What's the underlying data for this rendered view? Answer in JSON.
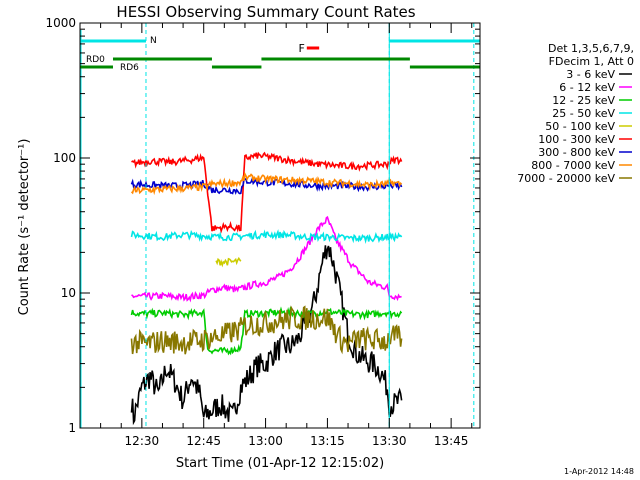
{
  "chart_data": {
    "type": "line",
    "title": "HESSI Observing Summary Count Rates",
    "xlabel": "Start Time (01-Apr-12 12:15:02)",
    "ylabel": "Count Rate (s⁻¹ detector⁻¹)",
    "yscale": "log",
    "ylim": [
      1,
      1000
    ],
    "xlim_minutes": [
      0,
      97
    ],
    "x_ticks": [
      {
        "label": "12:30",
        "minute": 15
      },
      {
        "label": "12:45",
        "minute": 30
      },
      {
        "label": "13:00",
        "minute": 45
      },
      {
        "label": "13:15",
        "minute": 60
      },
      {
        "label": "13:30",
        "minute": 75
      },
      {
        "label": "13:45",
        "minute": 90
      }
    ],
    "y_ticks": [
      {
        "label": "1",
        "value": 1
      },
      {
        "label": "10",
        "value": 10
      },
      {
        "label": "100",
        "value": 100
      },
      {
        "label": "1000",
        "value": 1000
      }
    ],
    "legend": {
      "position": "right",
      "header": [
        "Det 1,3,5,6,7,9,",
        "FDecim 1, Att 0"
      ]
    },
    "series": [
      {
        "name": "3 - 6 keV",
        "color": "#000000",
        "points": [
          [
            12.5,
            1.6
          ],
          [
            13,
            1.2
          ],
          [
            15,
            2.0
          ],
          [
            17,
            2.4
          ],
          [
            19,
            1.8
          ],
          [
            21,
            2.8
          ],
          [
            23,
            2.2
          ],
          [
            25,
            1.6
          ],
          [
            27,
            2.4
          ],
          [
            29,
            1.8
          ],
          [
            30,
            1.2
          ],
          [
            34,
            1.5
          ],
          [
            37,
            1.2
          ],
          [
            39,
            2.0
          ],
          [
            41,
            2.4
          ],
          [
            43,
            2.9
          ],
          [
            45,
            3.0
          ],
          [
            47,
            3.6
          ],
          [
            49,
            4.0
          ],
          [
            51,
            4.0
          ],
          [
            53,
            4.6
          ],
          [
            55,
            6.0
          ],
          [
            57,
            9.0
          ],
          [
            58,
            13
          ],
          [
            59,
            18
          ],
          [
            60,
            23
          ],
          [
            61,
            19
          ],
          [
            62,
            14
          ],
          [
            63,
            10
          ],
          [
            64,
            7
          ],
          [
            65,
            5
          ],
          [
            66,
            4.2
          ],
          [
            67,
            3.6
          ],
          [
            69,
            3.2
          ],
          [
            71,
            3.0
          ],
          [
            73,
            2.6
          ],
          [
            74.5,
            2.0
          ],
          [
            75,
            1.5
          ],
          [
            76,
            1.5
          ],
          [
            78,
            1.6
          ]
        ]
      },
      {
        "name": "6 - 12 keV",
        "color": "#ff00ff",
        "points": [
          [
            12.5,
            9.5
          ],
          [
            15,
            9.4
          ],
          [
            20,
            9.5
          ],
          [
            25,
            9.3
          ],
          [
            30,
            9.6
          ],
          [
            32,
            10.5
          ],
          [
            35,
            11
          ],
          [
            38,
            10.5
          ],
          [
            42,
            11.5
          ],
          [
            45,
            12
          ],
          [
            48,
            13
          ],
          [
            51,
            15
          ],
          [
            53,
            18
          ],
          [
            55,
            22
          ],
          [
            57,
            28
          ],
          [
            59,
            33
          ],
          [
            60,
            35
          ],
          [
            61,
            30
          ],
          [
            62,
            25
          ],
          [
            64,
            20
          ],
          [
            66,
            16
          ],
          [
            68,
            14
          ],
          [
            70,
            12
          ],
          [
            72,
            11.5
          ],
          [
            74.5,
            11
          ],
          [
            75,
            9.6
          ],
          [
            78,
            9.4
          ]
        ]
      },
      {
        "name": "12 - 25 keV",
        "color": "#00cc00",
        "points": [
          [
            12.5,
            7.2
          ],
          [
            15,
            7.0
          ],
          [
            20,
            7.1
          ],
          [
            25,
            6.9
          ],
          [
            30,
            7.2
          ],
          [
            31,
            3.8
          ],
          [
            35,
            3.7
          ],
          [
            39,
            3.9
          ],
          [
            40,
            7.0
          ],
          [
            45,
            7.1
          ],
          [
            50,
            7.2
          ],
          [
            55,
            7.0
          ],
          [
            60,
            7.3
          ],
          [
            65,
            7.0
          ],
          [
            70,
            6.9
          ],
          [
            74.5,
            7.2
          ],
          [
            75,
            7.0
          ],
          [
            78,
            7.1
          ]
        ]
      },
      {
        "name": "25 - 50 keV",
        "color": "#00e5e5",
        "points": [
          [
            12.5,
            27
          ],
          [
            20,
            26
          ],
          [
            25,
            27
          ],
          [
            30,
            26.5
          ],
          [
            33,
            26
          ],
          [
            37,
            26
          ],
          [
            40,
            26.5
          ],
          [
            45,
            27
          ],
          [
            50,
            27
          ],
          [
            55,
            26
          ],
          [
            60,
            26
          ],
          [
            65,
            25.5
          ],
          [
            70,
            25.5
          ],
          [
            74.5,
            26
          ],
          [
            75,
            26
          ],
          [
            78,
            26
          ]
        ]
      },
      {
        "name": "50 - 100 keV",
        "color": "#cccc00",
        "points": [
          [
            33,
            17
          ],
          [
            35,
            17
          ],
          [
            37,
            17
          ],
          [
            39,
            17.2
          ]
        ]
      },
      {
        "name": "100 - 300 keV",
        "color": "#ff0000",
        "points": [
          [
            12.5,
            91
          ],
          [
            17,
            95
          ],
          [
            22,
            93
          ],
          [
            27,
            97
          ],
          [
            30,
            101
          ],
          [
            32,
            30
          ],
          [
            36,
            31
          ],
          [
            39,
            30
          ],
          [
            40,
            100
          ],
          [
            43,
            104
          ],
          [
            46,
            102
          ],
          [
            50,
            97
          ],
          [
            54,
            93
          ],
          [
            58,
            90
          ],
          [
            62,
            88
          ],
          [
            66,
            87
          ],
          [
            70,
            88
          ],
          [
            74.5,
            90
          ],
          [
            75,
            93
          ],
          [
            77,
            98
          ],
          [
            78,
            94
          ]
        ]
      },
      {
        "name": "300 - 800 keV",
        "color": "#0000cc",
        "points": [
          [
            12.5,
            64
          ],
          [
            17,
            63
          ],
          [
            22,
            62
          ],
          [
            27,
            63
          ],
          [
            30,
            65
          ],
          [
            32,
            58
          ],
          [
            36,
            58
          ],
          [
            39,
            57
          ],
          [
            40,
            68
          ],
          [
            45,
            66
          ],
          [
            50,
            65
          ],
          [
            55,
            63
          ],
          [
            60,
            62
          ],
          [
            65,
            62
          ],
          [
            70,
            61
          ],
          [
            74.5,
            62
          ],
          [
            75,
            63
          ],
          [
            78,
            61
          ]
        ]
      },
      {
        "name": "800 - 7000 keV",
        "color": "#ff8800",
        "points": [
          [
            12.5,
            57
          ],
          [
            17,
            58
          ],
          [
            22,
            59
          ],
          [
            27,
            60
          ],
          [
            30,
            61
          ],
          [
            32,
            64
          ],
          [
            36,
            65
          ],
          [
            39,
            66
          ],
          [
            40,
            72
          ],
          [
            45,
            70
          ],
          [
            50,
            69
          ],
          [
            55,
            68
          ],
          [
            60,
            66
          ],
          [
            65,
            65
          ],
          [
            70,
            63
          ],
          [
            74.5,
            64
          ],
          [
            75,
            66
          ],
          [
            78,
            64
          ]
        ]
      },
      {
        "name": "7000 - 20000 keV",
        "color": "#887700",
        "points": [
          [
            12.5,
            4.3
          ],
          [
            16,
            4.2
          ],
          [
            20,
            4.4
          ],
          [
            25,
            4.3
          ],
          [
            30,
            4.5
          ],
          [
            31,
            4.6
          ],
          [
            35,
            4.9
          ],
          [
            39,
            5.4
          ],
          [
            40,
            5.8
          ],
          [
            45,
            6.0
          ],
          [
            50,
            6.4
          ],
          [
            55,
            6.5
          ],
          [
            60,
            6.6
          ],
          [
            63,
            4.6
          ],
          [
            65,
            4.2
          ],
          [
            68,
            4.6
          ],
          [
            70,
            4.5
          ],
          [
            74.5,
            4.4
          ],
          [
            75,
            4.8
          ],
          [
            78,
            4.6
          ]
        ]
      }
    ],
    "annotations": {
      "night_bars": {
        "color": "#00e5e5",
        "segments": [
          [
            0,
            16
          ],
          [
            75,
            97
          ]
        ],
        "label": "N"
      },
      "flare_flag": {
        "color": "#ff0000",
        "label": "F",
        "segment": [
          55,
          58
        ]
      },
      "decimation_bars": {
        "color": "#008800",
        "labels": [
          "RD0",
          "RD6"
        ],
        "segments": [
          {
            "from": 0,
            "to": 8,
            "level": "low"
          },
          {
            "from": 8,
            "to": 32,
            "level": "high"
          },
          {
            "from": 32,
            "to": 44,
            "level": "low"
          },
          {
            "from": 44,
            "to": 80,
            "level": "high"
          },
          {
            "from": 80,
            "to": 97,
            "level": "low"
          }
        ]
      },
      "night_boundaries": [
        16,
        75,
        95.5
      ]
    }
  },
  "footer": {
    "stamp": "1-Apr-2012 14:48"
  }
}
